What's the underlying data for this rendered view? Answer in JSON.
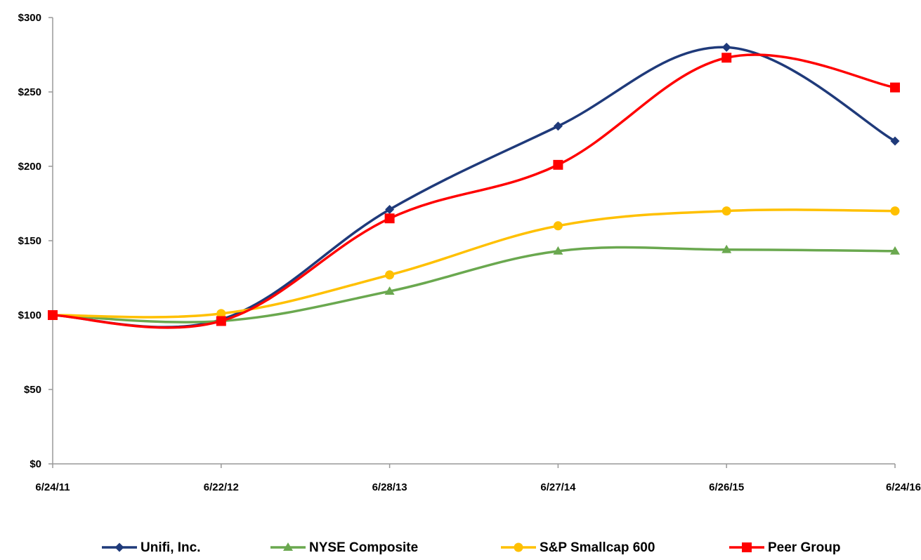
{
  "chart_data": {
    "type": "line",
    "title": "",
    "xlabel": "",
    "ylabel": "",
    "categories": [
      "6/24/11",
      "6/22/12",
      "6/28/13",
      "6/27/14",
      "6/26/15",
      "6/24/16"
    ],
    "y_ticks": [
      "$0",
      "$50",
      "$100",
      "$150",
      "$200",
      "$250",
      "$300"
    ],
    "ylim": [
      0,
      300
    ],
    "grid": false,
    "legend_position": "bottom",
    "smooth": true,
    "series": [
      {
        "name": "Unifi, Inc.",
        "color": "#1f3a7a",
        "marker": "diamond",
        "values": [
          100,
          97,
          171,
          227,
          280,
          217
        ]
      },
      {
        "name": "NYSE Composite",
        "color": "#6aa84f",
        "marker": "triangle",
        "values": [
          100,
          96,
          116,
          143,
          144,
          143
        ]
      },
      {
        "name": "S&P Smallcap 600",
        "color": "#ffc000",
        "marker": "circle",
        "values": [
          100,
          101,
          127,
          160,
          170,
          170
        ]
      },
      {
        "name": "Peer Group",
        "color": "#ff0000",
        "marker": "square",
        "values": [
          100,
          96,
          165,
          201,
          273,
          253
        ]
      }
    ]
  }
}
